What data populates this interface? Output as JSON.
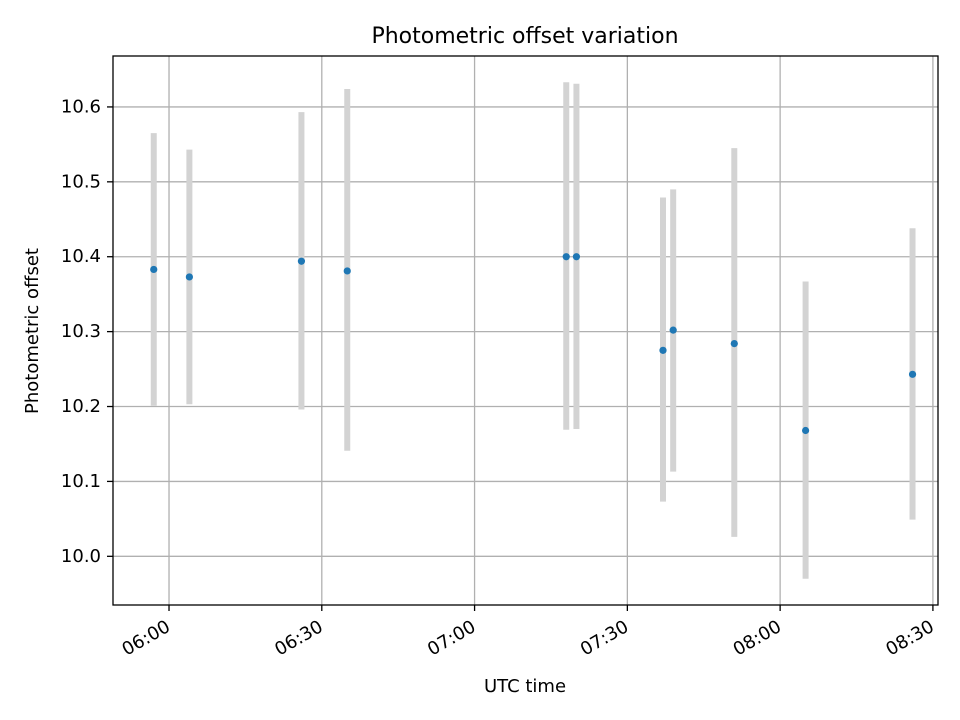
{
  "chart_data": {
    "type": "scatter",
    "title": "Photometric offset variation",
    "xlabel": "UTC time",
    "ylabel": "Photometric offset",
    "x_ticks": [
      "06:00",
      "06:30",
      "07:00",
      "07:30",
      "08:00",
      "08:30"
    ],
    "y_ticks": [
      "10.0",
      "10.1",
      "10.2",
      "10.3",
      "10.4",
      "10.5",
      "10.6"
    ],
    "ylim": [
      9.935,
      10.668
    ],
    "xlim": [
      "05:49",
      "08:31"
    ],
    "grid": true,
    "legend": "none",
    "series": [
      {
        "points": [
          {
            "x": "05:57",
            "y": 10.383,
            "err_low": 10.201,
            "err_high": 10.565
          },
          {
            "x": "06:04",
            "y": 10.373,
            "err_low": 10.203,
            "err_high": 10.543
          },
          {
            "x": "06:26",
            "y": 10.394,
            "err_low": 10.196,
            "err_high": 10.593
          },
          {
            "x": "06:35",
            "y": 10.381,
            "err_low": 10.141,
            "err_high": 10.624
          },
          {
            "x": "07:18",
            "y": 10.4,
            "err_low": 10.169,
            "err_high": 10.633
          },
          {
            "x": "07:20",
            "y": 10.4,
            "err_low": 10.17,
            "err_high": 10.631
          },
          {
            "x": "07:37",
            "y": 10.275,
            "err_low": 10.073,
            "err_high": 10.479
          },
          {
            "x": "07:39",
            "y": 10.302,
            "err_low": 10.113,
            "err_high": 10.49
          },
          {
            "x": "07:51",
            "y": 10.284,
            "err_low": 10.026,
            "err_high": 10.545
          },
          {
            "x": "08:05",
            "y": 10.168,
            "err_low": 9.97,
            "err_high": 10.367
          },
          {
            "x": "08:26",
            "y": 10.243,
            "err_low": 10.049,
            "err_high": 10.438
          }
        ]
      }
    ],
    "colors": {
      "point": "#1f77b4",
      "errorbar": "#d3d3d3",
      "grid": "#b0b0b0",
      "axis": "#000000"
    }
  }
}
